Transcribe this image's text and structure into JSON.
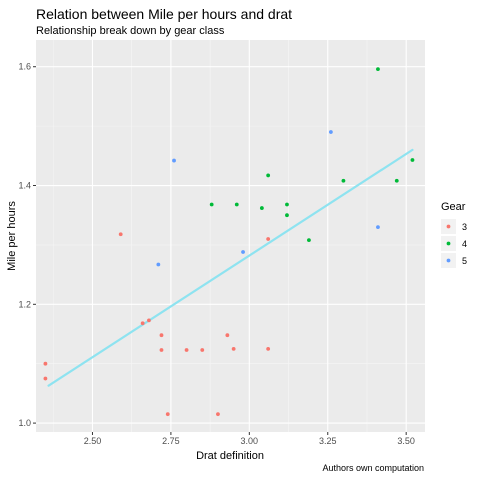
{
  "chart_data": {
    "type": "scatter",
    "title": "Relation between Mile per hours and drat",
    "subtitle": "Relationship break down by gear class",
    "xlabel": "Drat definition",
    "ylabel": "Mile per hours",
    "caption": "Authors own computation",
    "xlim": [
      2.32,
      3.56
    ],
    "ylim": [
      0.985,
      1.645
    ],
    "xticks": [
      2.5,
      2.75,
      3.0,
      3.25,
      3.5
    ],
    "xtick_labels": [
      "2.50",
      "2.75",
      "3.00",
      "3.25",
      "3.50"
    ],
    "yticks": [
      1.0,
      1.2,
      1.4,
      1.6
    ],
    "ytick_labels": [
      "1.0",
      "1.2",
      "1.4",
      "1.6"
    ],
    "grid": true,
    "background": "#ebebeb",
    "legend": {
      "title": "Gear",
      "position": "right",
      "entries": [
        "3",
        "4",
        "5"
      ]
    },
    "series": [
      {
        "name": "3",
        "color": "#f8766d",
        "points": [
          [
            2.35,
            1.1
          ],
          [
            2.35,
            1.075
          ],
          [
            2.59,
            1.318
          ],
          [
            2.66,
            1.168
          ],
          [
            2.68,
            1.173
          ],
          [
            2.72,
            1.148
          ],
          [
            2.72,
            1.123
          ],
          [
            2.74,
            1.015
          ],
          [
            2.8,
            1.123
          ],
          [
            2.85,
            1.123
          ],
          [
            2.9,
            1.015
          ],
          [
            2.93,
            1.148
          ],
          [
            2.95,
            1.125
          ],
          [
            3.06,
            1.31
          ],
          [
            3.06,
            1.125
          ]
        ]
      },
      {
        "name": "4",
        "color": "#00ba38",
        "points": [
          [
            2.88,
            1.368
          ],
          [
            2.96,
            1.368
          ],
          [
            3.04,
            1.362
          ],
          [
            3.06,
            1.417
          ],
          [
            3.12,
            1.368
          ],
          [
            3.12,
            1.35
          ],
          [
            3.19,
            1.308
          ],
          [
            3.3,
            1.408
          ],
          [
            3.41,
            1.596
          ],
          [
            3.47,
            1.408
          ],
          [
            3.52,
            1.443
          ]
        ]
      },
      {
        "name": "5",
        "color": "#619cff",
        "points": [
          [
            2.71,
            1.267
          ],
          [
            2.76,
            1.442
          ],
          [
            2.98,
            1.288
          ],
          [
            3.26,
            1.49
          ],
          [
            3.41,
            1.33
          ]
        ]
      }
    ],
    "trend_line": {
      "color": "#8ee3f0",
      "points": [
        [
          2.36,
          1.063
        ],
        [
          3.52,
          1.46
        ]
      ]
    }
  }
}
